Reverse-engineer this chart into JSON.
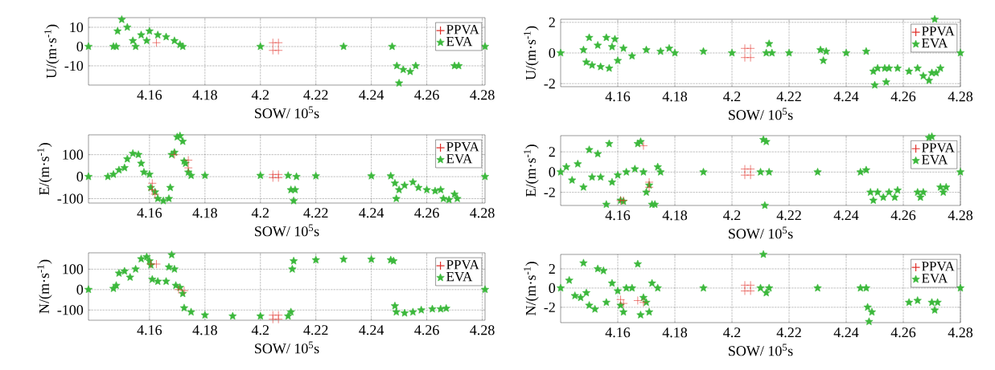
{
  "chart_data": [
    {
      "type": "scatter",
      "xlabel": "SOW/ 10$^{5}$s",
      "ylabel": "U/(m·s$^{-1}$)",
      "xlim": [
        4.138,
        4.281
      ],
      "ylim": [
        -20,
        15
      ],
      "xticks": [
        4.16,
        4.18,
        4.2,
        4.22,
        4.24,
        4.26,
        4.28
      ],
      "yticks": [
        -10,
        0,
        10
      ],
      "grid": true,
      "legend": "top right",
      "series": [
        {
          "name": "PPVA",
          "type": "scatter",
          "marker": "cross",
          "color": "#e0302a",
          "x": [
            4.1625,
            4.2045,
            4.2045,
            4.2065,
            4.2065
          ],
          "values": [
            2,
            2,
            -2,
            2,
            -2
          ]
        },
        {
          "name": "EVA",
          "marker": "star",
          "color": "#3cb83c",
          "x": [
            4.138,
            4.147,
            4.148,
            4.1485,
            4.15,
            4.152,
            4.154,
            4.155,
            4.157,
            4.159,
            4.16,
            4.163,
            4.166,
            4.169,
            4.171,
            4.172,
            4.2,
            4.23,
            4.2475,
            4.2492,
            4.25,
            4.2515,
            4.254,
            4.256,
            4.27,
            4.2715,
            4.281
          ],
          "values": [
            0,
            0,
            0,
            8,
            14,
            10,
            3,
            0,
            6,
            3,
            8,
            6,
            5,
            3,
            1,
            0,
            0,
            0,
            0,
            -10,
            -19,
            -12,
            -13,
            -10,
            -10,
            -10,
            0
          ]
        }
      ]
    },
    {
      "type": "scatter",
      "xlabel": "SOW/ 10$^{5}$s",
      "ylabel": "U/(m·s$^{-1}$)",
      "xlim": [
        4.14,
        4.28
      ],
      "ylim": [
        -2.2,
        2.2
      ],
      "xticks": [
        4.16,
        4.18,
        4.2,
        4.22,
        4.24,
        4.26,
        4.28
      ],
      "yticks": [
        -2,
        0,
        2
      ],
      "grid": true,
      "legend": "top right",
      "series": [
        {
          "name": "PPVA",
          "type": "scatter",
          "marker": "cross",
          "color": "#e0302a",
          "x": [
            4.2045,
            4.2045,
            4.2065,
            4.2065
          ],
          "values": [
            0.3,
            -0.3,
            0.3,
            -0.3
          ]
        },
        {
          "name": "EVA",
          "marker": "star",
          "color": "#3cb83c",
          "x": [
            4.14,
            4.148,
            4.149,
            4.15,
            4.151,
            4.153,
            4.154,
            4.156,
            4.157,
            4.158,
            4.159,
            4.16,
            4.162,
            4.165,
            4.17,
            4.175,
            4.178,
            4.18,
            4.19,
            4.2,
            4.212,
            4.213,
            4.214,
            4.22,
            4.231,
            4.232,
            4.233,
            4.24,
            4.247,
            4.2495,
            4.25,
            4.251,
            4.2535,
            4.254,
            4.255,
            4.258,
            4.262,
            4.265,
            4.267,
            4.269,
            4.27,
            4.2705,
            4.271,
            4.2715,
            4.273,
            4.28
          ],
          "values": [
            0,
            0.2,
            -0.6,
            1.0,
            -0.8,
            0.5,
            -0.9,
            1.0,
            -1.0,
            0.4,
            0.9,
            -0.5,
            0.3,
            -0.2,
            0.2,
            0.1,
            0.3,
            0,
            0.1,
            0,
            0,
            0.6,
            0,
            0,
            0.2,
            -0.5,
            0.1,
            0,
            0.1,
            -1.2,
            -2.1,
            -1.0,
            -1.0,
            -1.9,
            -1.0,
            -1.0,
            -1.2,
            -1.0,
            -1.5,
            -1.8,
            -1.3,
            null,
            2.2,
            -1.3,
            -1.0,
            0
          ]
        }
      ]
    },
    {
      "type": "scatter",
      "xlabel": "SOW/ 10$^{5}$s",
      "ylabel": "E/(m·s$^{-1}$)",
      "xlim": [
        4.138,
        4.281
      ],
      "ylim": [
        -120,
        190
      ],
      "xticks": [
        4.16,
        4.18,
        4.2,
        4.22,
        4.24,
        4.26,
        4.28
      ],
      "yticks": [
        -100,
        0,
        100
      ],
      "grid": true,
      "legend": "top right",
      "series": [
        {
          "name": "PPVA",
          "type": "scatter",
          "marker": "cross",
          "color": "#e0302a",
          "x": [
            4.161,
            4.161,
            4.162,
            4.169,
            4.174,
            4.174,
            4.2045,
            4.2045,
            4.2065,
            4.2065
          ],
          "values": [
            -30,
            -60,
            -80,
            100,
            75,
            40,
            10,
            -5,
            10,
            -5
          ]
        },
        {
          "name": "EVA",
          "marker": "star",
          "color": "#3cb83c",
          "x": [
            4.138,
            4.145,
            4.147,
            4.149,
            4.151,
            4.152,
            4.154,
            4.156,
            4.157,
            4.158,
            4.16,
            4.1605,
            4.162,
            4.163,
            4.165,
            4.167,
            4.1675,
            4.168,
            4.169,
            4.17,
            4.171,
            4.172,
            4.1725,
            4.173,
            4.174,
            4.175,
            4.18,
            4.2,
            4.21,
            4.211,
            4.212,
            4.2125,
            4.213,
            4.22,
            4.24,
            4.247,
            4.2485,
            4.249,
            4.25,
            4.252,
            4.255,
            4.257,
            4.26,
            4.263,
            4.265,
            4.266,
            4.268,
            4.27,
            4.271,
            4.281
          ],
          "values": [
            0,
            0,
            10,
            30,
            40,
            80,
            105,
            100,
            60,
            20,
            10,
            -50,
            -70,
            -100,
            -110,
            -100,
            -50,
            100,
            110,
            180,
            185,
            160,
            70,
            60,
            20,
            5,
            5,
            5,
            5,
            -60,
            -110,
            -60,
            0,
            3,
            3,
            3,
            -30,
            -100,
            -60,
            -40,
            -25,
            -50,
            -60,
            -65,
            -60,
            -100,
            -105,
            -80,
            -100,
            0
          ]
        }
      ]
    },
    {
      "type": "scatter",
      "xlabel": "SOW/ 10$^{5}$s",
      "ylabel": "E/(m·s$^{-1}$)",
      "xlim": [
        4.14,
        4.28
      ],
      "ylim": [
        -3.3,
        3.6
      ],
      "xticks": [
        4.16,
        4.18,
        4.2,
        4.22,
        4.24,
        4.26,
        4.28
      ],
      "yticks": [
        -2,
        0,
        2
      ],
      "grid": true,
      "legend": "top right",
      "series": [
        {
          "name": "PPVA",
          "type": "scatter",
          "marker": "cross",
          "color": "#e0302a",
          "x": [
            4.161,
            4.162,
            4.171,
            4.171,
            4.169,
            4.2045,
            4.2045,
            4.2065,
            4.2065
          ],
          "values": [
            -2.8,
            -2.8,
            -1.0,
            -1.5,
            2.6,
            0.3,
            -0.3,
            0.3,
            -0.3
          ]
        },
        {
          "name": "EVA",
          "marker": "star",
          "color": "#3cb83c",
          "x": [
            4.14,
            4.142,
            4.144,
            4.146,
            4.148,
            4.15,
            4.151,
            4.153,
            4.154,
            4.156,
            4.157,
            4.158,
            4.16,
            4.161,
            4.162,
            4.163,
            4.166,
            4.167,
            4.168,
            4.169,
            4.17,
            4.171,
            4.172,
            4.173,
            4.174,
            4.175,
            4.19,
            4.21,
            4.211,
            4.2115,
            4.212,
            4.213,
            4.23,
            4.245,
            4.247,
            4.2485,
            4.2495,
            4.251,
            4.253,
            4.255,
            4.257,
            4.258,
            4.265,
            4.266,
            4.267,
            4.269,
            4.27,
            4.273,
            4.274,
            4.275,
            4.28
          ],
          "values": [
            0,
            0.5,
            -0.8,
            0.8,
            -1.5,
            2.2,
            -0.5,
            1.8,
            -0.5,
            -3.2,
            2.8,
            -1.0,
            -0.3,
            -2.8,
            -2.9,
            0,
            0.3,
            2.8,
            3.0,
            0,
            -2.0,
            -1.3,
            -3.2,
            -3.2,
            0.5,
            0,
            0,
            0,
            3.2,
            -3.3,
            3.0,
            0,
            0,
            0,
            0.2,
            -2.0,
            -2.8,
            -2.0,
            -2.5,
            -2.0,
            -2.5,
            -1.8,
            -2.0,
            -2.5,
            -2.0,
            3.4,
            3.5,
            -1.5,
            -2.0,
            -1.5,
            0
          ]
        }
      ]
    },
    {
      "type": "scatter",
      "xlabel": "SOW/ 10$^{5}$s",
      "ylabel": "N/(m·s$^{-1}$)",
      "xlim": [
        4.138,
        4.281
      ],
      "ylim": [
        -150,
        180
      ],
      "xticks": [
        4.16,
        4.18,
        4.2,
        4.22,
        4.24,
        4.26,
        4.28
      ],
      "yticks": [
        -100,
        0,
        100
      ],
      "grid": true,
      "legend": "top right",
      "series": [
        {
          "name": "PPVA",
          "type": "scatter",
          "marker": "cross",
          "color": "#e0302a",
          "x": [
            4.1605,
            4.1625,
            4.1705,
            4.1725,
            4.2045,
            4.2045,
            4.2065,
            4.2065
          ],
          "values": [
            125,
            125,
            0,
            -5,
            -125,
            -145,
            -125,
            -145
          ]
        },
        {
          "name": "EVA",
          "marker": "star",
          "color": "#3cb83c",
          "x": [
            4.138,
            4.147,
            4.148,
            4.149,
            4.151,
            4.153,
            4.155,
            4.157,
            4.159,
            4.16,
            4.1605,
            4.161,
            4.163,
            4.166,
            4.167,
            4.168,
            4.169,
            4.1695,
            4.171,
            4.172,
            4.1725,
            4.175,
            4.18,
            4.19,
            4.2,
            4.21,
            4.211,
            4.2115,
            4.212,
            4.22,
            4.23,
            4.24,
            4.247,
            4.248,
            4.2485,
            4.249,
            4.252,
            4.255,
            4.258,
            4.262,
            4.265,
            4.267,
            4.281
          ],
          "values": [
            0,
            5,
            20,
            80,
            90,
            60,
            100,
            150,
            160,
            140,
            120,
            50,
            40,
            40,
            110,
            170,
            100,
            20,
            10,
            -20,
            -90,
            -110,
            -125,
            -130,
            -130,
            -130,
            -110,
            100,
            140,
            145,
            148,
            148,
            145,
            140,
            -80,
            -110,
            -115,
            -110,
            -100,
            -95,
            -95,
            -92,
            0
          ]
        }
      ]
    },
    {
      "type": "scatter",
      "xlabel": "SOW/ 10$^{5}$s",
      "ylabel": "N/(m·s$^{-1}$)",
      "xlim": [
        4.14,
        4.28
      ],
      "ylim": [
        -3.6,
        3.5
      ],
      "xticks": [
        4.16,
        4.18,
        4.2,
        4.22,
        4.24,
        4.26,
        4.28
      ],
      "yticks": [
        -2,
        0,
        2
      ],
      "grid": true,
      "legend": "top right",
      "series": [
        {
          "name": "PPVA",
          "type": "scatter",
          "marker": "cross",
          "color": "#e0302a",
          "x": [
            4.161,
            4.162,
            4.167,
            4.169,
            4.2045,
            4.2045,
            4.2065,
            4.2065
          ],
          "values": [
            -1.2,
            -1.6,
            -1.3,
            -1.5,
            0.3,
            -0.3,
            0.3,
            -0.3
          ]
        },
        {
          "name": "EVA",
          "marker": "star",
          "color": "#3cb83c",
          "x": [
            4.14,
            4.143,
            4.145,
            4.147,
            4.148,
            4.149,
            4.15,
            4.152,
            4.153,
            4.155,
            4.156,
            4.158,
            4.16,
            4.161,
            4.162,
            4.163,
            4.165,
            4.167,
            4.168,
            4.169,
            4.17,
            4.171,
            4.172,
            4.174,
            4.19,
            4.21,
            4.211,
            4.212,
            4.213,
            4.23,
            4.245,
            4.247,
            4.2475,
            4.248,
            4.249,
            4.262,
            4.265,
            4.2695,
            4.27,
            4.271,
            4.272,
            4.28
          ],
          "values": [
            0,
            0.8,
            -0.8,
            -1.0,
            2.6,
            -0.5,
            -1.8,
            -2.2,
            2.0,
            1.8,
            -1.5,
            0.5,
            -0.3,
            -1.8,
            -2.5,
            0,
            0,
            2.5,
            -2.8,
            -1.0,
            -1.5,
            -2.5,
            0.5,
            0,
            0,
            0,
            3.5,
            -0.5,
            0,
            0,
            0,
            0,
            -2.0,
            -3.5,
            -2.5,
            -1.5,
            -1.3,
            null,
            -1.5,
            -2.3,
            -1.5,
            0
          ]
        }
      ]
    }
  ]
}
